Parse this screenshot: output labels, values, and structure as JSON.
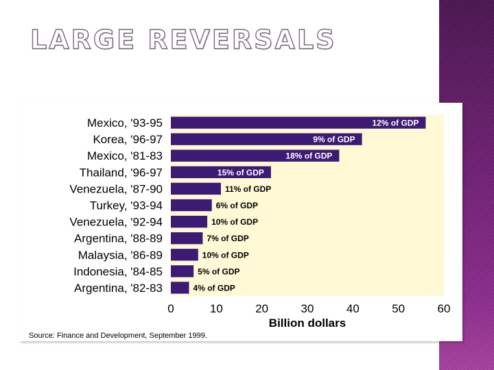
{
  "slide": {
    "title": "LARGE REVERSALS",
    "colors": {
      "band": "#6e1f72",
      "bar": "#3d1a73",
      "plot_bg": "#fff9d6",
      "bar_label": "#ffffff"
    }
  },
  "chart_data": {
    "type": "bar",
    "orientation": "horizontal",
    "categories": [
      "Mexico, '93-95",
      "Korea, '96-97",
      "Mexico, '81-83",
      "Thailand, '96-97",
      "Venezuela, '87-90",
      "Turkey, '93-94",
      "Venezuela, '92-94",
      "Argentina, '88-89",
      "Malaysia, '86-89",
      "Indonesia, '84-85",
      "Argentina, '82-83"
    ],
    "values": [
      56,
      42,
      37,
      22,
      11,
      9,
      8,
      7,
      6,
      5,
      4
    ],
    "bar_labels": [
      "12% of GDP",
      "9% of GDP",
      "18% of GDP",
      "15% of GDP",
      "11% of GDP",
      "6% of GDP",
      "10% of GDP",
      "7% of GDP",
      "10% of GDP",
      "5% of GDP",
      "4% of GDP"
    ],
    "xlabel": "Billion dollars",
    "ylabel": "",
    "xlim": [
      0,
      60
    ],
    "x_ticks": [
      0,
      10,
      20,
      30,
      40,
      50,
      60
    ],
    "grid": false,
    "legend": "none",
    "source": "Source: Finance and Development, September 1999."
  }
}
